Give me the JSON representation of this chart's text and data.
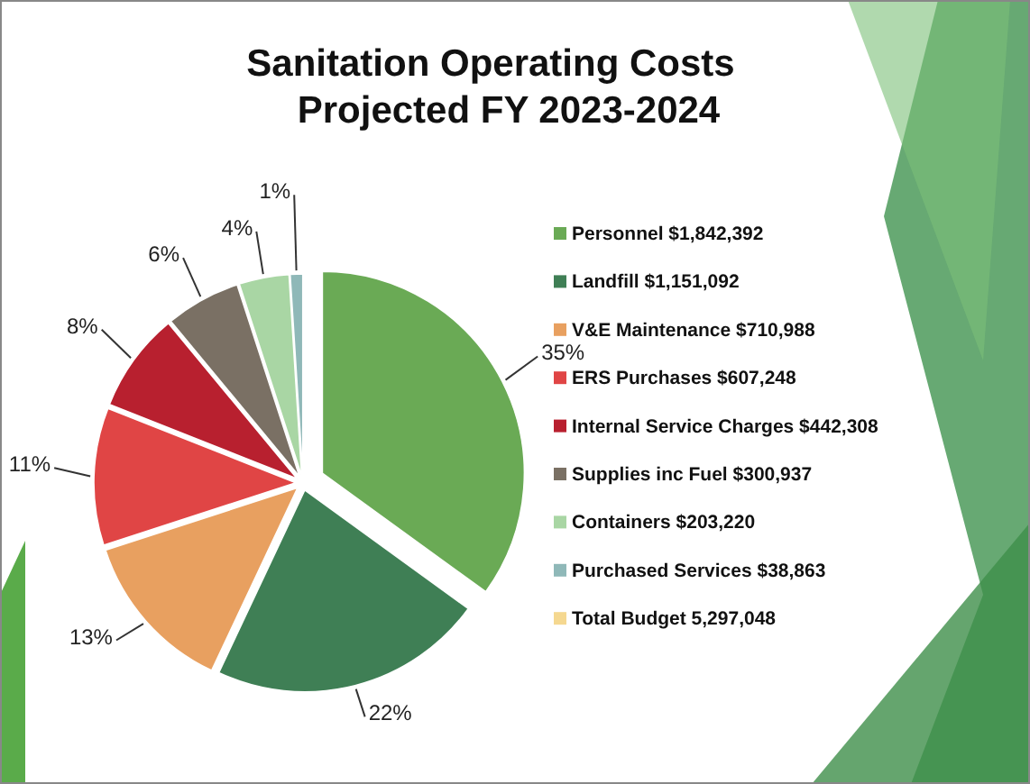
{
  "chart_data": {
    "type": "pie",
    "title": "Sanitation Operating Costs",
    "subtitle": "Projected FY 2023-2024",
    "categories": [
      "Personnel $1,842,392",
      "Landfill $1,151,092",
      "V&E Maintenance $710,988",
      "ERS Purchases $607,248",
      "Internal Service Charges $442,308",
      "Supplies inc Fuel $300,937",
      "Containers $203,220",
      "Purchased Services $38,863"
    ],
    "values": [
      35,
      22,
      13,
      11,
      8,
      6,
      4,
      1
    ],
    "colors": [
      "#6aaa55",
      "#3f7f55",
      "#e8a060",
      "#e04545",
      "#b8202f",
      "#7a7064",
      "#a9d6a4",
      "#8fb8b8"
    ],
    "value_labels": [
      "35%",
      "22%",
      "13%",
      "11%",
      "8%",
      "6%",
      "4%",
      "1%"
    ],
    "legend": "right",
    "annotations": [
      "Total Budget 5,297,048"
    ]
  }
}
